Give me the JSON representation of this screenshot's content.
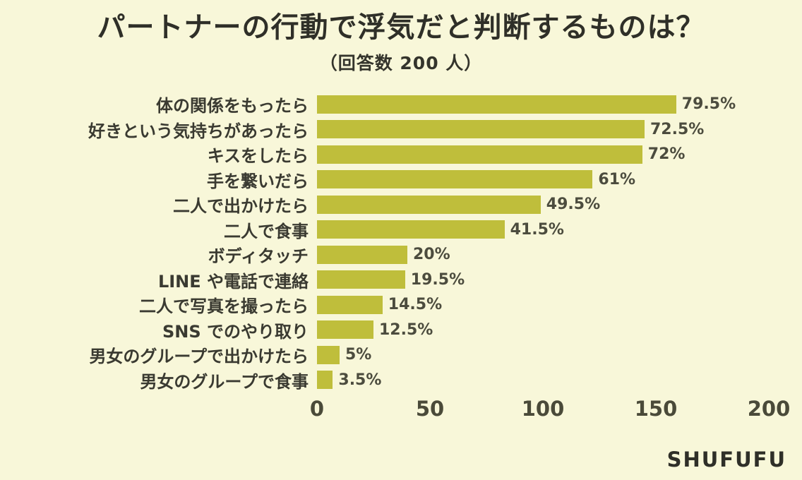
{
  "title": "パートナーの行動で浮気だと判断するものは？",
  "subtitle": "（回答数 200 人）",
  "brand": "SHUFUFU",
  "colors": {
    "background": "#f8f7d9",
    "bar": "#bfbe3b",
    "title_text": "#2f2f28",
    "label_text": "#3a3a31"
  },
  "chart_data": {
    "type": "bar",
    "orientation": "horizontal",
    "title": "パートナーの行動で浮気だと判断するものは？",
    "subtitle": "（回答数 200 人）",
    "respondent_count": 200,
    "categories": [
      "体の関係をもったら",
      "好きという気持ちがあったら",
      "キスをしたら",
      "手を繋いだら",
      "二人で出かけたら",
      "二人で食事",
      "ボディタッチ",
      "LINE や電話で連絡",
      "二人で写真を撮ったら",
      "SNS でのやり取り",
      "男女のグループで出かけたら",
      "男女のグループで食事"
    ],
    "values": [
      159,
      145,
      144,
      122,
      99,
      83,
      40,
      39,
      29,
      25,
      10,
      7
    ],
    "percent_labels": [
      "79.5%",
      "72.5%",
      "72%",
      "61%",
      "49.5%",
      "41.5%",
      "20%",
      "19.5%",
      "14.5%",
      "12.5%",
      "5%",
      "3.5%"
    ],
    "percentages": [
      79.5,
      72.5,
      72,
      61,
      49.5,
      41.5,
      20,
      19.5,
      14.5,
      12.5,
      5,
      3.5
    ],
    "xlabel": "",
    "ylabel": "",
    "xlim": [
      0,
      200
    ],
    "x_ticks": [
      0,
      50,
      100,
      150,
      200
    ],
    "grid": false,
    "legend": false
  }
}
